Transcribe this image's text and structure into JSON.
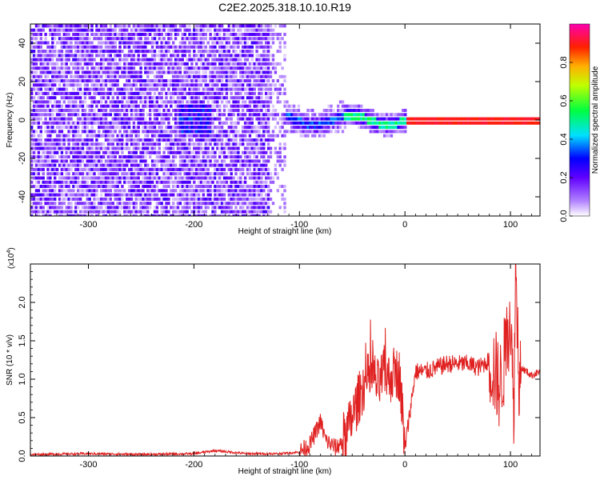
{
  "title": "C2E2.2025.318.10.10.R19",
  "chart_data": [
    {
      "type": "heatmap",
      "name": "spectrogram",
      "xlabel": "Height of straight line (km)",
      "ylabel": "Frequency (Hz)",
      "xlim": [
        -355,
        128
      ],
      "ylim": [
        -50,
        50
      ],
      "xticks": [
        -300,
        -200,
        -100,
        0,
        100
      ],
      "yticks": [
        -40,
        -20,
        0,
        20,
        40
      ],
      "colorbar": {
        "label": "Normalized spectral amplitude",
        "range": [
          0,
          1
        ],
        "ticks": [
          0.0,
          0.2,
          0.4,
          0.6,
          0.8
        ],
        "tick_labels": [
          "0.0",
          "0.2",
          "0.4",
          "0.6",
          "0.8"
        ],
        "colormap": [
          "#ffffff",
          "#8000ff",
          "#0000ff",
          "#00ffff",
          "#00ff00",
          "#ffff00",
          "#ff0000",
          "#ff00ff"
        ]
      },
      "regions": [
        {
          "x": [
            -355,
            -130
          ],
          "freq_spread_hz": 50,
          "amplitude": 0.1,
          "description_level": "noise"
        },
        {
          "x": [
            -130,
            -60
          ],
          "freq_spread_hz": 8,
          "amplitude": 0.35
        },
        {
          "x": [
            -60,
            0
          ],
          "freq_spread_hz": 5,
          "amplitude": 0.6
        },
        {
          "x": [
            0,
            128
          ],
          "freq_spread_hz": 2,
          "amplitude": 0.9
        }
      ]
    },
    {
      "type": "line",
      "name": "snr",
      "xlabel": "Height of straight line (km)",
      "ylabel": "SNR (10 * v/v)",
      "yunit": "(x10",
      "yunit_exp": "4",
      "yunit_close": ")",
      "xlim": [
        -355,
        128
      ],
      "ylim": [
        0,
        2.5
      ],
      "xticks": [
        -300,
        -200,
        -100,
        0,
        100
      ],
      "yticks": [
        0.0,
        0.5,
        1.0,
        1.5,
        2.0
      ],
      "ytick_labels": [
        "0.0",
        "0.5",
        "1.0",
        "1.5",
        "2.0"
      ],
      "color": "#e02020",
      "x": [
        -355,
        -300,
        -250,
        -200,
        -180,
        -150,
        -120,
        -100,
        -90,
        -85,
        -80,
        -75,
        -70,
        -65,
        -60,
        -55,
        -50,
        -45,
        -40,
        -35,
        -30,
        -25,
        -20,
        -15,
        -10,
        -5,
        0,
        10,
        20,
        30,
        40,
        50,
        60,
        70,
        80,
        85,
        90,
        95,
        100,
        103,
        105,
        108,
        110,
        115,
        120,
        128
      ],
      "y": [
        0.02,
        0.03,
        0.02,
        0.03,
        0.07,
        0.03,
        0.03,
        0.05,
        0.15,
        0.3,
        0.45,
        0.2,
        0.15,
        0.1,
        0.2,
        0.3,
        0.5,
        0.7,
        0.9,
        1.0,
        1.05,
        0.9,
        1.1,
        1.0,
        1.1,
        1.05,
        0.1,
        1.1,
        1.1,
        1.15,
        1.2,
        1.2,
        1.2,
        1.15,
        1.25,
        1.1,
        0.9,
        1.3,
        1.9,
        0.5,
        2.5,
        1.1,
        1.15,
        1.1,
        1.05,
        1.1
      ]
    }
  ]
}
